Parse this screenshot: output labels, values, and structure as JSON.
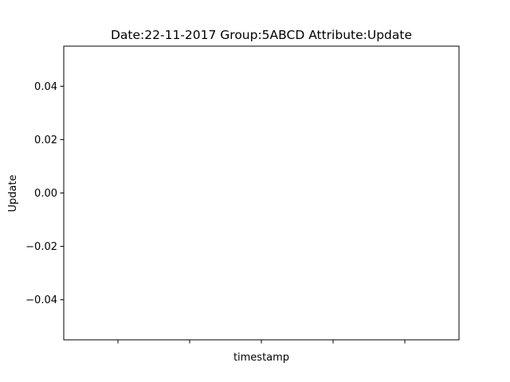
{
  "chart_data": {
    "type": "line",
    "title": "Date:22-11-2017  Group:5ABCD Attribute:Update",
    "xlabel": "timestamp",
    "ylabel": "Update",
    "ylim": [
      -0.055,
      0.055
    ],
    "y_ticks": [
      0.04,
      0.02,
      0.0,
      -0.02,
      -0.04
    ],
    "y_tick_labels": [
      "0.04",
      "0.02",
      "0.00",
      "−0.02",
      "−0.04"
    ],
    "x_tick_count": 5,
    "x_tick_labels": [
      "",
      "",
      "",
      "",
      ""
    ],
    "series": [],
    "grid": false,
    "legend": "none",
    "colors": {
      "axes": "#000000",
      "background": "#ffffff"
    }
  }
}
